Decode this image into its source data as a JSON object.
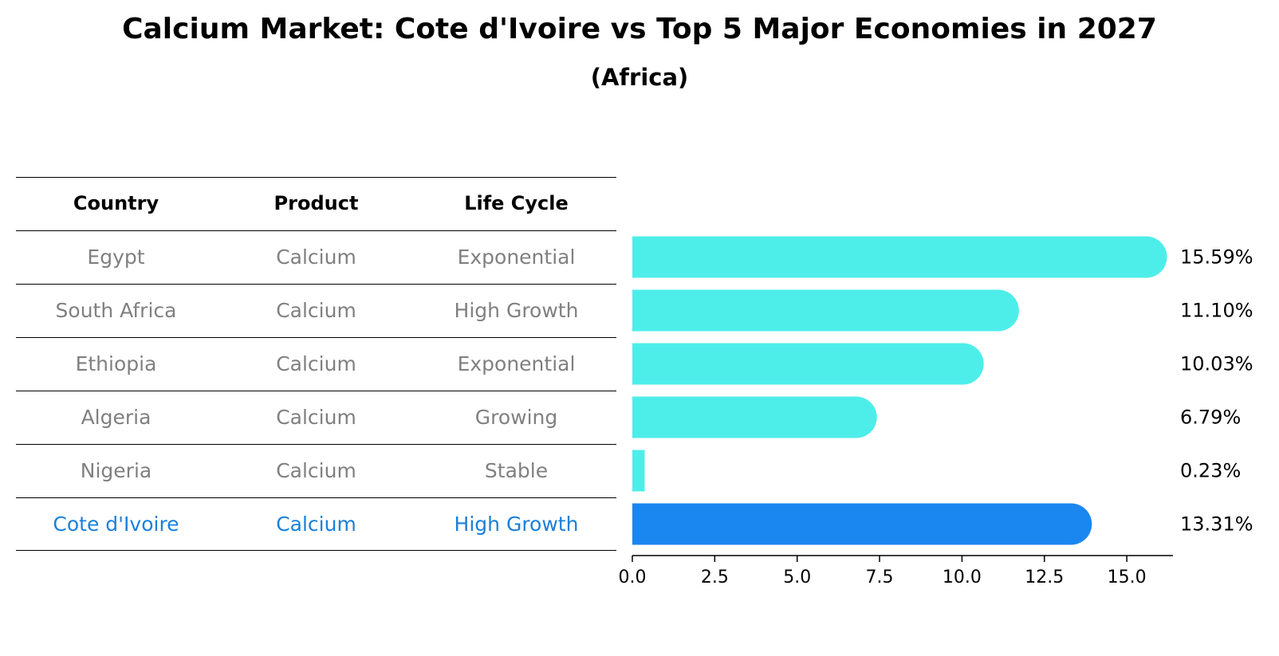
{
  "title": "Calcium Market: Cote d'Ivoire vs Top 5 Major Economies in 2027",
  "subtitle": "(Africa)",
  "table": {
    "headers": [
      "Country",
      "Product",
      "Life Cycle"
    ],
    "rows": [
      [
        "Egypt",
        "Calcium",
        "Exponential"
      ],
      [
        "South Africa",
        "Calcium",
        "High Growth"
      ],
      [
        "Ethiopia",
        "Calcium",
        "Exponential"
      ],
      [
        "Algeria",
        "Calcium",
        "Growing"
      ],
      [
        "Nigeria",
        "Calcium",
        "Stable"
      ],
      [
        "Cote d'Ivoire",
        "Calcium",
        "High Growth"
      ]
    ]
  },
  "colors": {
    "bar": "#4deeea",
    "highlight": "#1a86f0",
    "highlight_text": "#1a80d9",
    "muted_text": "#808080"
  },
  "chart_data": {
    "type": "bar",
    "orientation": "horizontal",
    "categories": [
      "Egypt",
      "South Africa",
      "Ethiopia",
      "Algeria",
      "Nigeria",
      "Cote d'Ivoire"
    ],
    "values": [
      15.59,
      11.1,
      10.03,
      6.79,
      0.23,
      13.31
    ],
    "value_labels": [
      "15.59%",
      "11.10%",
      "10.03%",
      "6.79%",
      "0.23%",
      "13.31%"
    ],
    "highlight_index": 5,
    "xlim": [
      0,
      16.4
    ],
    "xticks": [
      0.0,
      2.5,
      5.0,
      7.5,
      10.0,
      12.5,
      15.0
    ],
    "xtick_labels": [
      "0.0",
      "2.5",
      "5.0",
      "7.5",
      "10.0",
      "12.5",
      "15.0"
    ],
    "grid": false
  }
}
